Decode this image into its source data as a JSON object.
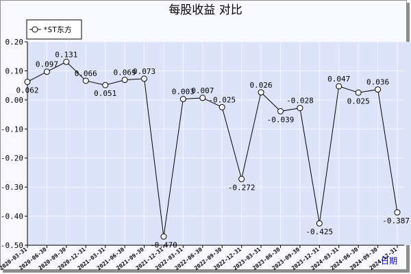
{
  "chart_data": {
    "type": "line",
    "title": "每股收益  对比",
    "xlabel": "日期",
    "ylabel": "",
    "ylim": [
      -0.5,
      0.2
    ],
    "yticks": [
      "0.20",
      "0.10",
      "0.00",
      "-0.10",
      "-0.20",
      "-0.30",
      "-0.40",
      "-0.50"
    ],
    "ytick_values": [
      0.2,
      0.1,
      0.0,
      -0.1,
      -0.2,
      -0.3,
      -0.4,
      -0.5
    ],
    "grid": true,
    "legend_position": "top-left",
    "categories": [
      "2020-03-31",
      "2020-06-30",
      "2020-09-30",
      "2020-12-31",
      "2021-03-31",
      "2021-06-30",
      "2021-09-30",
      "2021-12-31",
      "2022-03-31",
      "2022-06-30",
      "2022-09-30",
      "2022-12-31",
      "2023-03-31",
      "2023-06-30",
      "2023-09-30",
      "2023-12-31",
      "2024-03-31",
      "2024-06-30",
      "2024-09-30",
      "2024-12-31"
    ],
    "series": [
      {
        "name": "*ST东方",
        "values": [
          0.062,
          0.097,
          0.131,
          0.066,
          0.051,
          0.069,
          0.073,
          -0.47,
          0.003,
          0.007,
          -0.025,
          -0.272,
          0.026,
          -0.039,
          -0.028,
          -0.425,
          0.047,
          0.025,
          0.036,
          -0.387
        ],
        "labels": [
          "0.062",
          "0.097",
          "0.131",
          "0.066",
          "0.051",
          "0.069",
          "0.073",
          "-0.470",
          "0.003",
          "0.007",
          "-0.025",
          "-0.272",
          "0.026",
          "-0.039",
          "-0.028",
          "-0.425",
          "0.047",
          "0.025",
          "0.036",
          "-0.387"
        ]
      }
    ],
    "colors": {
      "plot_bg": "#dde4fa",
      "grid": "#f4f6ff",
      "line": "#000000",
      "marker_fill": "#ffffff",
      "xlabel": "#0000cc"
    }
  }
}
